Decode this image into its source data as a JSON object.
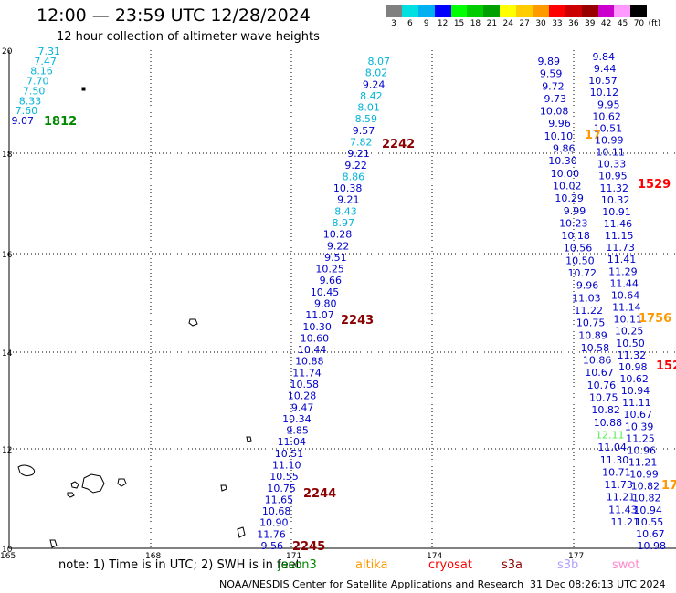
{
  "title": "12:00 — 23:59 UTC 12/28/2024",
  "subtitle": "12 hour collection of altimeter wave heights",
  "colorbar": {
    "colors": [
      "#808080",
      "#00e0e0",
      "#00b0f0",
      "#0000ff",
      "#00ff00",
      "#00cc00",
      "#00a000",
      "#ffff00",
      "#ffcc00",
      "#ff9900",
      "#ff0000",
      "#cc0000",
      "#990000",
      "#cc00cc",
      "#ff99ff",
      "#000000"
    ],
    "labels": [
      "3",
      "6",
      "9",
      "12",
      "15",
      "18",
      "21",
      "24",
      "27",
      "30",
      "33",
      "36",
      "39",
      "42",
      "45",
      "70"
    ],
    "unit": "(ft)"
  },
  "map": {
    "lon_ticks": [
      "165",
      "168",
      "171",
      "174",
      "177"
    ],
    "lat_ticks": [
      "10",
      "12",
      "14",
      "16",
      "18",
      "20"
    ],
    "colors": {
      "cyan": "#00b4d8",
      "blue": "#0000cc",
      "green": "#008800",
      "darkred": "#8b0000",
      "red": "#ff0000",
      "orange": "#ff9900",
      "lime": "#55ee55"
    },
    "time_labels": [
      {
        "text": "1812",
        "color": "green"
      },
      {
        "text": "2242",
        "color": "darkred"
      },
      {
        "text": "2243",
        "color": "darkred"
      },
      {
        "text": "2244",
        "color": "darkred"
      },
      {
        "text": "2245",
        "color": "darkred"
      },
      {
        "text": "1529",
        "color": "red"
      },
      {
        "text": "152",
        "color": "red"
      },
      {
        "text": "17",
        "color": "orange"
      },
      {
        "text": "1756",
        "color": "orange"
      },
      {
        "text": "17",
        "color": "orange"
      }
    ],
    "track_a": [
      {
        "v": "7.31",
        "c": "cyan"
      },
      {
        "v": "7.47",
        "c": "cyan"
      },
      {
        "v": "8.16",
        "c": "cyan"
      },
      {
        "v": "7.70",
        "c": "cyan"
      },
      {
        "v": "7.50",
        "c": "cyan"
      },
      {
        "v": "8.33",
        "c": "cyan"
      },
      {
        "v": "7.60",
        "c": "cyan"
      },
      {
        "v": "9.07",
        "c": "blue"
      }
    ],
    "track_b": [
      {
        "v": "8.07",
        "c": "cyan"
      },
      {
        "v": "8.02",
        "c": "cyan"
      },
      {
        "v": "9.24",
        "c": "blue"
      },
      {
        "v": "8.42",
        "c": "cyan"
      },
      {
        "v": "8.01",
        "c": "cyan"
      },
      {
        "v": "8.59",
        "c": "cyan"
      },
      {
        "v": "9.57",
        "c": "blue"
      },
      {
        "v": "7.82",
        "c": "cyan"
      },
      {
        "v": "9.21",
        "c": "blue"
      },
      {
        "v": "9.22",
        "c": "blue"
      },
      {
        "v": "8.86",
        "c": "cyan"
      },
      {
        "v": "10.38",
        "c": "blue"
      },
      {
        "v": "9.21",
        "c": "blue"
      },
      {
        "v": "8.43",
        "c": "cyan"
      },
      {
        "v": "8.97",
        "c": "cyan"
      },
      {
        "v": "10.28",
        "c": "blue"
      },
      {
        "v": "9.22",
        "c": "blue"
      },
      {
        "v": "9.51",
        "c": "blue"
      },
      {
        "v": "10.25",
        "c": "blue"
      },
      {
        "v": "9.66",
        "c": "blue"
      },
      {
        "v": "10.45",
        "c": "blue"
      },
      {
        "v": "9.80",
        "c": "blue"
      },
      {
        "v": "11.07",
        "c": "blue"
      },
      {
        "v": "10.30",
        "c": "blue"
      },
      {
        "v": "10.60",
        "c": "blue"
      },
      {
        "v": "10.44",
        "c": "blue"
      },
      {
        "v": "10.88",
        "c": "blue"
      },
      {
        "v": "11.74",
        "c": "blue"
      },
      {
        "v": "10.58",
        "c": "blue"
      },
      {
        "v": "10.28",
        "c": "blue"
      },
      {
        "v": "9.47",
        "c": "blue"
      },
      {
        "v": "10.34",
        "c": "blue"
      },
      {
        "v": "9.85",
        "c": "blue"
      },
      {
        "v": "11.04",
        "c": "blue"
      },
      {
        "v": "10.51",
        "c": "blue"
      },
      {
        "v": "11.10",
        "c": "blue"
      },
      {
        "v": "10.55",
        "c": "blue"
      },
      {
        "v": "10.75",
        "c": "blue"
      },
      {
        "v": "11.65",
        "c": "blue"
      },
      {
        "v": "10.68",
        "c": "blue"
      },
      {
        "v": "10.90",
        "c": "blue"
      },
      {
        "v": "11.76",
        "c": "blue"
      },
      {
        "v": "9.56",
        "c": "blue"
      }
    ],
    "track_c": [
      {
        "v": "9.89",
        "c": "blue"
      },
      {
        "v": "9.59",
        "c": "blue"
      },
      {
        "v": "9.72",
        "c": "blue"
      },
      {
        "v": "9.73",
        "c": "blue"
      },
      {
        "v": "10.08",
        "c": "blue"
      },
      {
        "v": "9.96",
        "c": "blue"
      },
      {
        "v": "10.10",
        "c": "blue"
      },
      {
        "v": "9.86",
        "c": "blue"
      },
      {
        "v": "10.30",
        "c": "blue"
      },
      {
        "v": "10.00",
        "c": "blue"
      },
      {
        "v": "10.02",
        "c": "blue"
      },
      {
        "v": "10.29",
        "c": "blue"
      },
      {
        "v": "9.99",
        "c": "blue"
      },
      {
        "v": "10.23",
        "c": "blue"
      },
      {
        "v": "10.18",
        "c": "blue"
      },
      {
        "v": "10.56",
        "c": "blue"
      },
      {
        "v": "10.50",
        "c": "blue"
      },
      {
        "v": "10.72",
        "c": "blue"
      },
      {
        "v": "9.96",
        "c": "blue"
      },
      {
        "v": "11.03",
        "c": "blue"
      },
      {
        "v": "11.22",
        "c": "blue"
      },
      {
        "v": "10.75",
        "c": "blue"
      },
      {
        "v": "10.89",
        "c": "blue"
      },
      {
        "v": "10.58",
        "c": "blue"
      },
      {
        "v": "10.86",
        "c": "blue"
      },
      {
        "v": "10.67",
        "c": "blue"
      },
      {
        "v": "10.76",
        "c": "blue"
      },
      {
        "v": "10.75",
        "c": "blue"
      },
      {
        "v": "10.82",
        "c": "blue"
      },
      {
        "v": "10.88",
        "c": "blue"
      },
      {
        "v": "12.11",
        "c": "lime"
      },
      {
        "v": "11.04",
        "c": "blue"
      },
      {
        "v": "11.30",
        "c": "blue"
      },
      {
        "v": "10.71",
        "c": "blue"
      },
      {
        "v": "11.73",
        "c": "blue"
      },
      {
        "v": "11.21",
        "c": "blue"
      },
      {
        "v": "11.43",
        "c": "blue"
      },
      {
        "v": "11.21",
        "c": "blue"
      }
    ],
    "track_d": [
      {
        "v": "9.84",
        "c": "blue"
      },
      {
        "v": "9.44",
        "c": "blue"
      },
      {
        "v": "10.57",
        "c": "blue"
      },
      {
        "v": "10.12",
        "c": "blue"
      },
      {
        "v": "9.95",
        "c": "blue"
      },
      {
        "v": "10.62",
        "c": "blue"
      },
      {
        "v": "10.51",
        "c": "blue"
      },
      {
        "v": "10.99",
        "c": "blue"
      },
      {
        "v": "10.11",
        "c": "blue"
      },
      {
        "v": "10.33",
        "c": "blue"
      },
      {
        "v": "10.95",
        "c": "blue"
      },
      {
        "v": "11.32",
        "c": "blue"
      },
      {
        "v": "10.32",
        "c": "blue"
      },
      {
        "v": "10.91",
        "c": "blue"
      },
      {
        "v": "11.46",
        "c": "blue"
      },
      {
        "v": "11.15",
        "c": "blue"
      },
      {
        "v": "11.73",
        "c": "blue"
      },
      {
        "v": "11.41",
        "c": "blue"
      },
      {
        "v": "11.29",
        "c": "blue"
      },
      {
        "v": "11.44",
        "c": "blue"
      },
      {
        "v": "10.64",
        "c": "blue"
      },
      {
        "v": "11.14",
        "c": "blue"
      },
      {
        "v": "10.11",
        "c": "blue"
      },
      {
        "v": "10.25",
        "c": "blue"
      },
      {
        "v": "10.50",
        "c": "blue"
      },
      {
        "v": "11.32",
        "c": "blue"
      },
      {
        "v": "10.98",
        "c": "blue"
      },
      {
        "v": "10.62",
        "c": "blue"
      },
      {
        "v": "10.94",
        "c": "blue"
      },
      {
        "v": "11.11",
        "c": "blue"
      },
      {
        "v": "10.67",
        "c": "blue"
      },
      {
        "v": "10.39",
        "c": "blue"
      },
      {
        "v": "11.25",
        "c": "blue"
      },
      {
        "v": "10.96",
        "c": "blue"
      },
      {
        "v": "11.21",
        "c": "blue"
      },
      {
        "v": "10.99",
        "c": "blue"
      },
      {
        "v": "10.82",
        "c": "blue"
      },
      {
        "v": "10.82",
        "c": "blue"
      },
      {
        "v": "10.94",
        "c": "blue"
      },
      {
        "v": "10.55",
        "c": "blue"
      },
      {
        "v": "10.67",
        "c": "blue"
      },
      {
        "v": "10.98",
        "c": "blue"
      }
    ]
  },
  "note": "note:  1) Time is in UTC;  2) SWH is in feet",
  "missions": [
    {
      "name": "jason3",
      "color": "#008800"
    },
    {
      "name": "altika",
      "color": "#ff9900"
    },
    {
      "name": "cryosat",
      "color": "#ff0000"
    },
    {
      "name": "s3a",
      "color": "#8b0000"
    },
    {
      "name": "s3b",
      "color": "#b0a0ff"
    },
    {
      "name": "swot",
      "color": "#ff88cc"
    }
  ],
  "credit": "NOAA/NESDIS Center for Satellite Applications and Research",
  "timestamp": "31 Dec 08:26:13 UTC 2024"
}
